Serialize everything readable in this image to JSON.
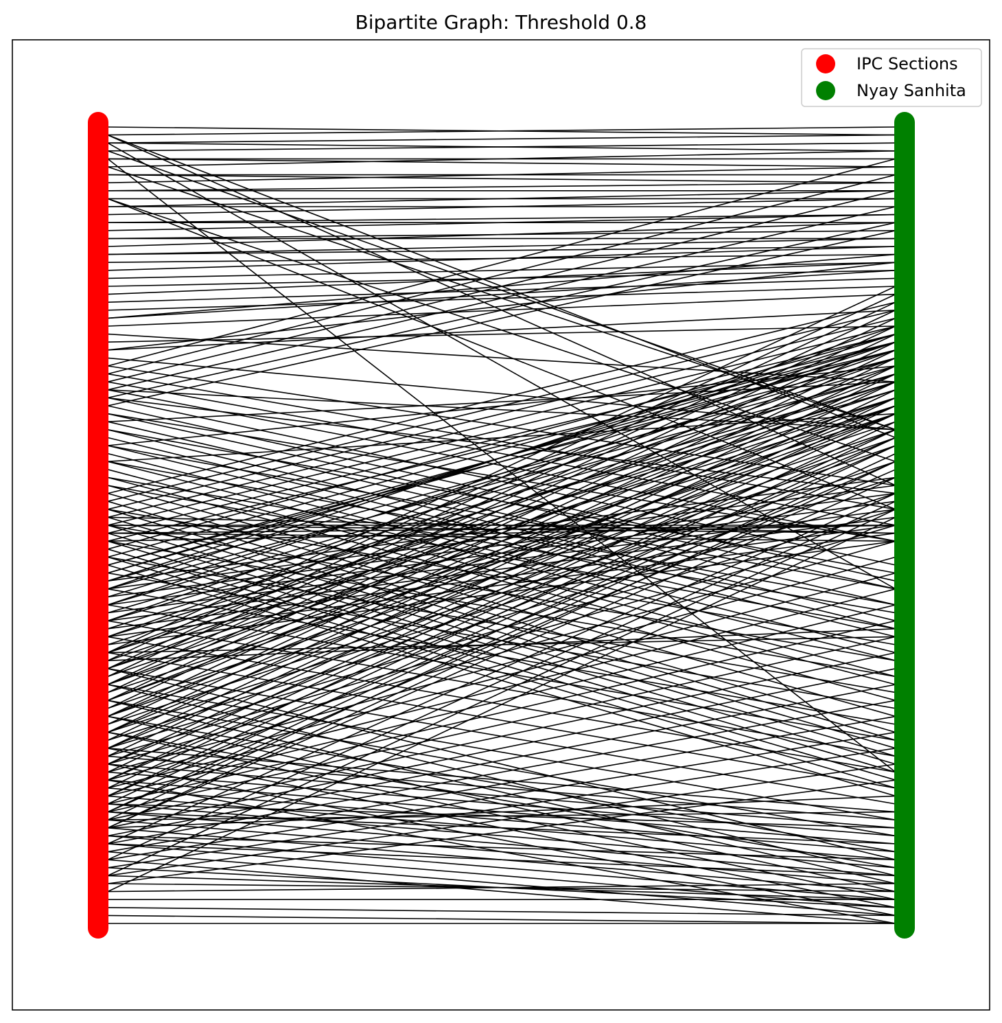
{
  "figure": {
    "title": "Bipartite Graph: Threshold 0.8"
  },
  "legend": {
    "position": "upper-right",
    "items": [
      {
        "label": "IPC Sections",
        "color": "#ff0000"
      },
      {
        "label": "Nyay Sanhita",
        "color": "#008000"
      }
    ]
  },
  "colors": {
    "ipc": "#ff0000",
    "nyay": "#008000",
    "edge": "#000000"
  },
  "graph": {
    "type": "bipartite",
    "left_partition": "IPC Sections",
    "right_partition": "Nyay Sanhita",
    "threshold": 0.8,
    "edges_note": "edges drawn as straight lines from left (IPC) to right (Nyay Sanhita); endpoints given as fractional positions along each column (0 = top, 1 = bottom)",
    "edges": [
      [
        0.0,
        0.01
      ],
      [
        0.01,
        0.0
      ],
      [
        0.02,
        0.01
      ],
      [
        0.02,
        0.03
      ],
      [
        0.03,
        0.02
      ],
      [
        0.04,
        0.04
      ],
      [
        0.04,
        0.05
      ],
      [
        0.05,
        0.03
      ],
      [
        0.06,
        0.06
      ],
      [
        0.06,
        0.07
      ],
      [
        0.07,
        0.05
      ],
      [
        0.08,
        0.08
      ],
      [
        0.08,
        0.07
      ],
      [
        0.09,
        0.09
      ],
      [
        0.1,
        0.08
      ],
      [
        0.1,
        0.1
      ],
      [
        0.11,
        0.09
      ],
      [
        0.12,
        0.11
      ],
      [
        0.12,
        0.12
      ],
      [
        0.13,
        0.11
      ],
      [
        0.14,
        0.13
      ],
      [
        0.14,
        0.14
      ],
      [
        0.15,
        0.12
      ],
      [
        0.16,
        0.15
      ],
      [
        0.16,
        0.14
      ],
      [
        0.17,
        0.16
      ],
      [
        0.18,
        0.15
      ],
      [
        0.19,
        0.17
      ],
      [
        0.2,
        0.18
      ],
      [
        0.21,
        0.17
      ],
      [
        0.22,
        0.19
      ],
      [
        0.23,
        0.2
      ],
      [
        0.24,
        0.18
      ],
      [
        0.25,
        0.21
      ],
      [
        0.01,
        0.45
      ],
      [
        0.01,
        0.39
      ],
      [
        0.03,
        0.38
      ],
      [
        0.05,
        0.38
      ],
      [
        0.04,
        0.81
      ],
      [
        0.02,
        0.58
      ],
      [
        0.09,
        0.48
      ],
      [
        0.09,
        0.42
      ],
      [
        0.24,
        0.16
      ],
      [
        0.27,
        0.25
      ],
      [
        0.28,
        0.23
      ],
      [
        0.28,
        0.17
      ],
      [
        0.26,
        0.32
      ],
      [
        0.29,
        0.38
      ],
      [
        0.3,
        0.45
      ],
      [
        0.31,
        0.48
      ],
      [
        0.32,
        0.5
      ],
      [
        0.33,
        0.52
      ],
      [
        0.34,
        0.55
      ],
      [
        0.35,
        0.57
      ],
      [
        0.36,
        0.58
      ],
      [
        0.37,
        0.6
      ],
      [
        0.38,
        0.62
      ],
      [
        0.39,
        0.63
      ],
      [
        0.4,
        0.64
      ],
      [
        0.41,
        0.66
      ],
      [
        0.42,
        0.67
      ],
      [
        0.43,
        0.69
      ],
      [
        0.44,
        0.7
      ],
      [
        0.45,
        0.72
      ],
      [
        0.46,
        0.74
      ],
      [
        0.47,
        0.76
      ],
      [
        0.48,
        0.77
      ],
      [
        0.49,
        0.78
      ],
      [
        0.5,
        0.79
      ],
      [
        0.51,
        0.8
      ],
      [
        0.52,
        0.81
      ],
      [
        0.53,
        0.82
      ],
      [
        0.54,
        0.83
      ],
      [
        0.55,
        0.84
      ],
      [
        0.46,
        0.22
      ],
      [
        0.47,
        0.23
      ],
      [
        0.48,
        0.24
      ],
      [
        0.49,
        0.25
      ],
      [
        0.5,
        0.26
      ],
      [
        0.51,
        0.27
      ],
      [
        0.52,
        0.28
      ],
      [
        0.53,
        0.26
      ],
      [
        0.54,
        0.27
      ],
      [
        0.55,
        0.29
      ],
      [
        0.56,
        0.28
      ],
      [
        0.57,
        0.3
      ],
      [
        0.58,
        0.31
      ],
      [
        0.59,
        0.29
      ],
      [
        0.6,
        0.31
      ],
      [
        0.61,
        0.32
      ],
      [
        0.62,
        0.33
      ],
      [
        0.63,
        0.32
      ],
      [
        0.64,
        0.34
      ],
      [
        0.65,
        0.33
      ],
      [
        0.66,
        0.35
      ],
      [
        0.67,
        0.34
      ],
      [
        0.68,
        0.36
      ],
      [
        0.69,
        0.35
      ],
      [
        0.7,
        0.37
      ],
      [
        0.71,
        0.38
      ],
      [
        0.72,
        0.36
      ],
      [
        0.73,
        0.39
      ],
      [
        0.74,
        0.4
      ],
      [
        0.75,
        0.42
      ],
      [
        0.76,
        0.44
      ],
      [
        0.77,
        0.46
      ],
      [
        0.78,
        0.48
      ],
      [
        0.79,
        0.5
      ],
      [
        0.8,
        0.52
      ],
      [
        0.81,
        0.54
      ],
      [
        0.82,
        0.56
      ],
      [
        0.83,
        0.58
      ],
      [
        0.84,
        0.6
      ],
      [
        0.85,
        0.62
      ],
      [
        0.86,
        0.64
      ],
      [
        0.87,
        0.66
      ],
      [
        0.88,
        0.68
      ],
      [
        0.89,
        0.7
      ],
      [
        0.9,
        0.72
      ],
      [
        0.91,
        0.74
      ],
      [
        0.92,
        0.76
      ],
      [
        0.93,
        0.78
      ],
      [
        0.94,
        0.8
      ],
      [
        0.95,
        0.82
      ],
      [
        0.55,
        0.28
      ],
      [
        0.56,
        0.27
      ],
      [
        0.57,
        0.26
      ],
      [
        0.58,
        0.25
      ],
      [
        0.6,
        0.27
      ],
      [
        0.62,
        0.28
      ],
      [
        0.64,
        0.29
      ],
      [
        0.66,
        0.3
      ],
      [
        0.68,
        0.31
      ],
      [
        0.7,
        0.32
      ],
      [
        0.72,
        0.34
      ],
      [
        0.74,
        0.35
      ],
      [
        0.76,
        0.36
      ],
      [
        0.78,
        0.38
      ],
      [
        0.8,
        0.39
      ],
      [
        0.82,
        0.4
      ],
      [
        0.84,
        0.42
      ],
      [
        0.86,
        0.43
      ],
      [
        0.88,
        0.44
      ],
      [
        0.9,
        0.46
      ],
      [
        0.92,
        0.47
      ],
      [
        0.94,
        0.48
      ],
      [
        0.96,
        0.49
      ],
      [
        0.68,
        0.92
      ],
      [
        0.7,
        0.94
      ],
      [
        0.72,
        0.95
      ],
      [
        0.74,
        0.96
      ],
      [
        0.76,
        0.97
      ],
      [
        0.78,
        0.98
      ],
      [
        0.8,
        0.99
      ],
      [
        0.82,
        1.0
      ],
      [
        0.78,
        0.86
      ],
      [
        0.79,
        0.87
      ],
      [
        0.8,
        0.88
      ],
      [
        0.81,
        0.89
      ],
      [
        0.82,
        0.9
      ],
      [
        0.83,
        0.91
      ],
      [
        0.84,
        0.92
      ],
      [
        0.85,
        0.93
      ],
      [
        0.86,
        0.94
      ],
      [
        0.87,
        0.95
      ],
      [
        0.88,
        0.96
      ],
      [
        0.89,
        0.97
      ],
      [
        0.9,
        0.98
      ],
      [
        0.91,
        0.99
      ],
      [
        0.92,
        1.0
      ],
      [
        0.93,
        0.98
      ],
      [
        0.94,
        0.97
      ],
      [
        0.95,
        0.96
      ],
      [
        0.96,
        0.95
      ],
      [
        0.97,
        0.97
      ],
      [
        0.98,
        0.99
      ],
      [
        0.99,
        1.0
      ],
      [
        1.0,
        1.0
      ],
      [
        0.88,
        0.84
      ],
      [
        0.87,
        0.86
      ],
      [
        0.89,
        0.92
      ],
      [
        0.9,
        0.94
      ],
      [
        0.85,
        0.88
      ],
      [
        0.86,
        0.9
      ],
      [
        0.42,
        0.36
      ],
      [
        0.4,
        0.3
      ],
      [
        0.37,
        0.32
      ],
      [
        0.34,
        0.46
      ],
      [
        0.33,
        0.38
      ],
      [
        0.36,
        0.52
      ],
      [
        0.38,
        0.56
      ],
      [
        0.4,
        0.58
      ],
      [
        0.42,
        0.6
      ],
      [
        0.44,
        0.61
      ],
      [
        0.45,
        0.63
      ],
      [
        0.48,
        0.65
      ],
      [
        0.5,
        0.67
      ],
      [
        0.52,
        0.69
      ],
      [
        0.54,
        0.71
      ],
      [
        0.56,
        0.73
      ],
      [
        0.58,
        0.75
      ],
      [
        0.6,
        0.77
      ],
      [
        0.62,
        0.79
      ],
      [
        0.64,
        0.81
      ],
      [
        0.66,
        0.83
      ],
      [
        0.68,
        0.85
      ],
      [
        0.7,
        0.87
      ],
      [
        0.72,
        0.89
      ],
      [
        0.74,
        0.91
      ],
      [
        0.76,
        0.93
      ],
      [
        0.66,
        0.2
      ],
      [
        0.67,
        0.21
      ],
      [
        0.68,
        0.22
      ],
      [
        0.69,
        0.23
      ],
      [
        0.7,
        0.24
      ],
      [
        0.71,
        0.25
      ],
      [
        0.72,
        0.26
      ],
      [
        0.73,
        0.27
      ],
      [
        0.74,
        0.28
      ],
      [
        0.75,
        0.29
      ],
      [
        0.76,
        0.3
      ],
      [
        0.77,
        0.31
      ],
      [
        0.78,
        0.32
      ],
      [
        0.79,
        0.33
      ],
      [
        0.8,
        0.34
      ],
      [
        0.81,
        0.35
      ],
      [
        0.82,
        0.36
      ],
      [
        0.83,
        0.37
      ],
      [
        0.84,
        0.38
      ],
      [
        0.85,
        0.39
      ],
      [
        0.86,
        0.4
      ],
      [
        0.87,
        0.41
      ],
      [
        0.88,
        0.42
      ],
      [
        0.5,
        0.5
      ],
      [
        0.5,
        0.51
      ],
      [
        0.51,
        0.5
      ],
      [
        0.49,
        0.51
      ],
      [
        0.52,
        0.5
      ],
      [
        0.51,
        0.52
      ],
      [
        0.66,
        0.64
      ],
      [
        0.67,
        0.63
      ],
      [
        0.57,
        0.44
      ],
      [
        0.58,
        0.45
      ],
      [
        0.59,
        0.46
      ],
      [
        0.6,
        0.47
      ],
      [
        0.61,
        0.48
      ],
      [
        0.62,
        0.49
      ],
      [
        0.63,
        0.5
      ],
      [
        0.64,
        0.51
      ],
      [
        0.65,
        0.52
      ],
      [
        0.3,
        0.04
      ],
      [
        0.31,
        0.06
      ],
      [
        0.32,
        0.08
      ],
      [
        0.33,
        0.1
      ],
      [
        0.34,
        0.12
      ],
      [
        0.35,
        0.13
      ]
    ]
  }
}
